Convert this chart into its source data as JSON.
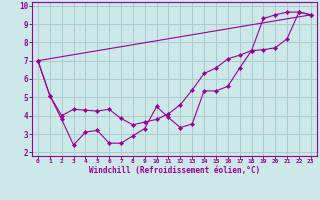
{
  "xlabel": "Windchill (Refroidissement éolien,°C)",
  "bg_color": "#cce8e8",
  "line_color": "#990099",
  "grid_color": "#aacccc",
  "xlim": [
    -0.5,
    23.5
  ],
  "ylim": [
    1.8,
    10.2
  ],
  "xticks": [
    0,
    1,
    2,
    3,
    4,
    5,
    6,
    7,
    8,
    9,
    10,
    11,
    12,
    13,
    14,
    15,
    16,
    17,
    18,
    19,
    20,
    21,
    22,
    23
  ],
  "yticks": [
    2,
    3,
    4,
    5,
    6,
    7,
    8,
    9,
    10
  ],
  "curve_zigzag_x": [
    0,
    1,
    2,
    3,
    4,
    5,
    6,
    7,
    8,
    9,
    10,
    11,
    12,
    13,
    14,
    15,
    16,
    17,
    18,
    19,
    20,
    21,
    22,
    23
  ],
  "curve_zigzag_y": [
    7.0,
    5.1,
    3.8,
    2.4,
    3.1,
    3.2,
    2.5,
    2.5,
    2.9,
    3.3,
    4.5,
    3.9,
    3.35,
    3.55,
    5.35,
    5.35,
    5.6,
    6.6,
    7.55,
    7.6,
    7.7,
    8.2,
    9.65,
    9.5
  ],
  "curve_smooth_x": [
    0,
    1,
    2,
    3,
    4,
    5,
    6,
    7,
    8,
    9,
    10,
    11,
    12,
    13,
    14,
    15,
    16,
    17,
    18,
    19,
    20,
    21,
    22,
    23
  ],
  "curve_smooth_y": [
    7.0,
    5.1,
    4.0,
    4.35,
    4.3,
    4.25,
    4.35,
    3.85,
    3.5,
    3.65,
    3.8,
    4.1,
    4.6,
    5.4,
    6.3,
    6.6,
    7.1,
    7.3,
    7.55,
    9.3,
    9.5,
    9.65,
    9.65,
    9.5
  ],
  "curve_line_x": [
    0,
    23
  ],
  "curve_line_y": [
    7.0,
    9.5
  ]
}
